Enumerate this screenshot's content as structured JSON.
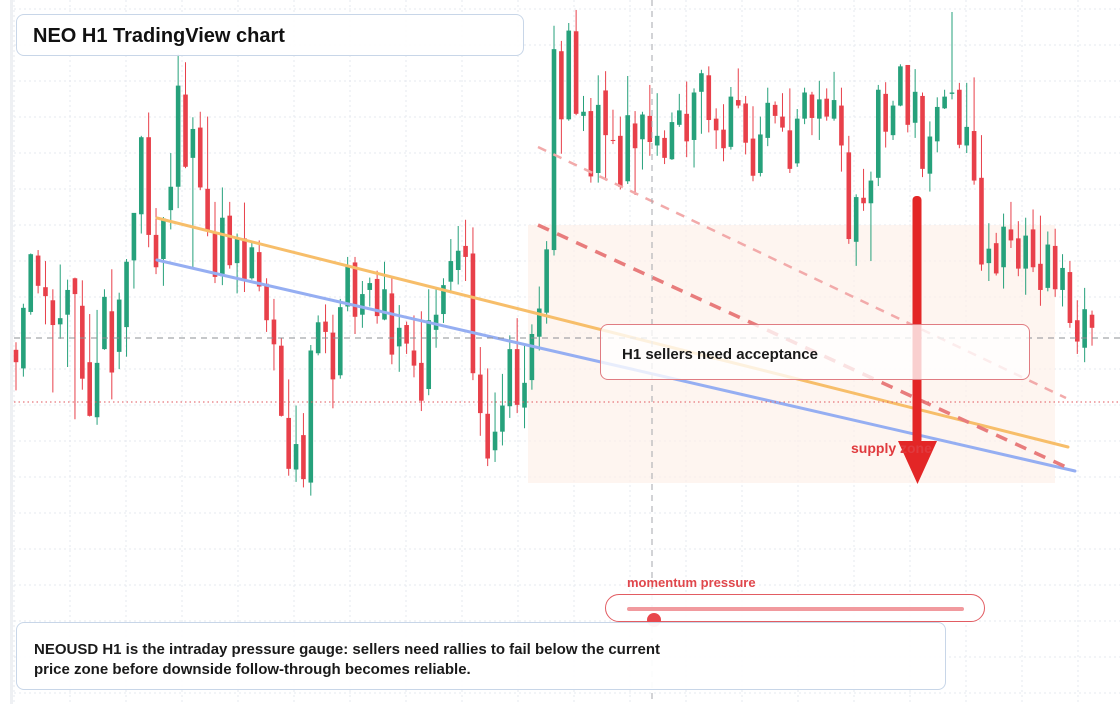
{
  "title": "NEO H1 TradingView chart",
  "callout_text": "H1 sellers need acceptance",
  "zone_label": "supply zone",
  "momentum": {
    "label": "momentum pressure",
    "level": 0.08
  },
  "note_text": "NEOUSD H1 is the intraday pressure gauge: sellers need rallies to fail below the current price zone before downside follow-through becomes reliable.",
  "colors": {
    "up": "#26a17b",
    "down": "#e8404a",
    "trend_orange": "#f7be6a",
    "trend_blue": "#95aef2",
    "channel_dashed": "#e87c7c",
    "arrow": "#e32626",
    "grid": "#e6e9ef",
    "zone_fill": "#fdf0e8"
  },
  "chart_data": {
    "type": "candlestick",
    "symbol": "NEOUSD",
    "timeframe": "H1",
    "ylim": [
      0,
      100
    ],
    "price_scale_visible": false,
    "grid": true,
    "candles": [
      [
        50.9,
        52.0,
        45.0,
        49.1
      ],
      [
        48.2,
        57.6,
        47.0,
        57.0
      ],
      [
        56.4,
        64.9,
        56.0,
        64.8
      ],
      [
        64.6,
        65.4,
        59.1,
        60.2
      ],
      [
        60.0,
        63.8,
        54.6,
        58.7
      ],
      [
        58.1,
        59.7,
        44.7,
        54.5
      ],
      [
        54.6,
        63.3,
        52.5,
        55.5
      ],
      [
        56.0,
        61.1,
        48.4,
        59.6
      ],
      [
        61.3,
        61.4,
        40.8,
        59.0
      ],
      [
        57.3,
        61.0,
        45.1,
        46.7
      ],
      [
        49.1,
        56.1,
        41.2,
        41.3
      ],
      [
        41.1,
        56.7,
        40.0,
        49.0
      ],
      [
        51.0,
        59.7,
        50.9,
        58.6
      ],
      [
        56.5,
        62.6,
        43.7,
        47.6
      ],
      [
        50.6,
        59.2,
        48.1,
        58.2
      ],
      [
        54.2,
        64.1,
        49.9,
        63.7
      ],
      [
        63.9,
        70.7,
        59.8,
        70.8
      ],
      [
        70.6,
        82.0,
        67.8,
        81.8
      ],
      [
        81.8,
        85.4,
        65.8,
        67.6
      ],
      [
        67.6,
        71.5,
        61.9,
        62.9
      ],
      [
        64.1,
        70.2,
        60.2,
        70.0
      ],
      [
        71.2,
        79.5,
        68.4,
        74.6
      ],
      [
        74.6,
        93.9,
        71.5,
        89.3
      ],
      [
        88.0,
        92.7,
        77.3,
        77.5
      ],
      [
        78.8,
        84.7,
        62.6,
        83.0
      ],
      [
        83.2,
        85.5,
        74.1,
        74.5
      ],
      [
        74.3,
        84.8,
        67.4,
        68.3
      ],
      [
        67.8,
        72.4,
        60.6,
        61.5
      ],
      [
        61.6,
        74.5,
        60.3,
        70.1
      ],
      [
        70.4,
        72.4,
        62.7,
        63.2
      ],
      [
        63.5,
        67.8,
        59.1,
        67.0
      ],
      [
        67.1,
        72.3,
        59.3,
        61.2
      ],
      [
        61.3,
        66.7,
        61.1,
        65.8
      ],
      [
        65.1,
        66.8,
        59.4,
        60.1
      ],
      [
        60.5,
        61.3,
        53.5,
        55.2
      ],
      [
        55.3,
        58.3,
        47.9,
        51.7
      ],
      [
        51.5,
        52.6,
        41.2,
        41.3
      ],
      [
        41.0,
        46.6,
        32.6,
        33.6
      ],
      [
        33.5,
        42.8,
        31.7,
        37.2
      ],
      [
        38.5,
        41.7,
        30.9,
        32.1
      ],
      [
        31.6,
        51.6,
        29.7,
        50.8
      ],
      [
        50.4,
        55.9,
        50.1,
        54.9
      ],
      [
        55.0,
        57.5,
        50.4,
        53.5
      ],
      [
        53.4,
        56.0,
        42.4,
        46.6
      ],
      [
        47.2,
        58.3,
        46.7,
        57.1
      ],
      [
        57.2,
        64.4,
        56.5,
        63.1
      ],
      [
        63.6,
        64.4,
        53.2,
        55.7
      ],
      [
        56.0,
        60.9,
        54.1,
        59.0
      ],
      [
        59.6,
        61.4,
        57.2,
        60.6
      ],
      [
        61.2,
        62.4,
        54.7,
        55.8
      ],
      [
        55.3,
        63.7,
        55.2,
        59.7
      ],
      [
        59.1,
        61.3,
        48.8,
        50.2
      ],
      [
        51.4,
        57.4,
        47.7,
        54.1
      ],
      [
        54.5,
        55.0,
        50.3,
        51.8
      ],
      [
        50.8,
        55.9,
        46.9,
        48.6
      ],
      [
        49.0,
        56.5,
        42.0,
        43.5
      ],
      [
        45.2,
        59.7,
        44.3,
        55.2
      ],
      [
        53.8,
        59.9,
        51.2,
        56.0
      ],
      [
        56.1,
        61.3,
        54.8,
        60.3
      ],
      [
        60.8,
        67.0,
        59.1,
        63.8
      ],
      [
        62.5,
        68.9,
        60.4,
        65.3
      ],
      [
        66.0,
        69.8,
        60.9,
        64.4
      ],
      [
        64.9,
        68.7,
        46.5,
        47.5
      ],
      [
        47.3,
        51.3,
        38.4,
        41.7
      ],
      [
        41.6,
        48.2,
        34.0,
        35.1
      ],
      [
        36.3,
        44.7,
        34.6,
        39.0
      ],
      [
        39.0,
        47.4,
        37.0,
        42.8
      ],
      [
        42.7,
        53.0,
        41.0,
        51.0
      ],
      [
        51.0,
        55.5,
        41.7,
        42.9
      ],
      [
        42.5,
        51.6,
        39.5,
        46.1
      ],
      [
        46.5,
        54.6,
        45.1,
        53.2
      ],
      [
        52.8,
        60.1,
        50.8,
        56.9
      ],
      [
        56.3,
        66.7,
        54.7,
        65.5
      ],
      [
        65.4,
        98.0,
        64.6,
        94.6
      ],
      [
        94.3,
        95.8,
        79.4,
        84.4
      ],
      [
        84.4,
        98.4,
        84.2,
        97.3
      ],
      [
        97.2,
        100.3,
        85.0,
        85.2
      ],
      [
        84.9,
        87.8,
        82.7,
        85.5
      ],
      [
        85.6,
        87.5,
        75.2,
        76.1
      ],
      [
        76.6,
        90.8,
        75.2,
        86.5
      ],
      [
        88.6,
        91.4,
        75.5,
        82.1
      ],
      [
        81.4,
        85.8,
        80.8,
        81.3
      ],
      [
        82.0,
        84.8,
        74.2,
        74.6
      ],
      [
        75.4,
        90.7,
        75.0,
        85.0
      ],
      [
        83.8,
        85.6,
        73.4,
        80.2
      ],
      [
        81.5,
        85.5,
        77.1,
        85.1
      ],
      [
        84.9,
        89.4,
        79.1,
        81.1
      ],
      [
        80.6,
        88.2,
        79.1,
        82.0
      ],
      [
        81.7,
        82.8,
        77.9,
        78.8
      ],
      [
        78.6,
        85.4,
        78.5,
        84.0
      ],
      [
        83.6,
        88.1,
        83.3,
        85.7
      ],
      [
        85.2,
        89.9,
        78.9,
        81.2
      ],
      [
        81.4,
        88.9,
        77.4,
        88.3
      ],
      [
        88.4,
        91.6,
        82.3,
        91.1
      ],
      [
        90.8,
        92.1,
        82.5,
        84.3
      ],
      [
        84.5,
        86.0,
        80.1,
        82.8
      ],
      [
        82.9,
        86.6,
        78.3,
        80.2
      ],
      [
        80.4,
        89.1,
        80.0,
        87.7
      ],
      [
        87.2,
        91.8,
        86.0,
        86.4
      ],
      [
        86.7,
        87.8,
        79.3,
        81.0
      ],
      [
        81.6,
        86.3,
        75.4,
        76.2
      ],
      [
        76.6,
        84.8,
        76.1,
        82.2
      ],
      [
        81.7,
        89.0,
        80.5,
        86.8
      ],
      [
        86.5,
        87.0,
        83.8,
        84.9
      ],
      [
        84.8,
        88.2,
        82.6,
        83.2
      ],
      [
        82.8,
        88.9,
        76.6,
        77.2
      ],
      [
        78.0,
        85.9,
        77.5,
        84.5
      ],
      [
        84.5,
        89.0,
        83.7,
        88.3
      ],
      [
        88.0,
        88.4,
        82.1,
        84.6
      ],
      [
        84.5,
        90.0,
        81.4,
        87.3
      ],
      [
        87.4,
        88.9,
        84.2,
        84.8
      ],
      [
        84.5,
        91.3,
        84.2,
        87.2
      ],
      [
        86.4,
        89.0,
        76.8,
        80.6
      ],
      [
        79.6,
        82.0,
        66.3,
        67.0
      ],
      [
        66.6,
        73.5,
        63.1,
        73.1
      ],
      [
        73.0,
        77.2,
        71.1,
        72.2
      ],
      [
        72.2,
        76.8,
        63.8,
        75.5
      ],
      [
        75.9,
        89.4,
        74.7,
        88.7
      ],
      [
        88.1,
        89.8,
        80.3,
        82.6
      ],
      [
        82.1,
        87.1,
        81.4,
        86.4
      ],
      [
        86.4,
        92.4,
        86.3,
        92.1
      ],
      [
        92.3,
        92.2,
        82.5,
        83.6
      ],
      [
        83.9,
        91.7,
        81.7,
        88.4
      ],
      [
        87.8,
        88.3,
        76.0,
        77.2
      ],
      [
        76.5,
        84.1,
        73.9,
        81.9
      ],
      [
        81.2,
        87.6,
        79.6,
        86.2
      ],
      [
        86.0,
        88.7,
        85.9,
        87.7
      ],
      [
        88.1,
        100.0,
        87.3,
        88.3
      ],
      [
        88.7,
        89.7,
        80.2,
        80.7
      ],
      [
        80.6,
        89.7,
        79.5,
        83.3
      ],
      [
        82.7,
        90.5,
        74.9,
        75.5
      ],
      [
        75.9,
        82.1,
        62.4,
        63.3
      ],
      [
        63.5,
        69.3,
        60.9,
        65.6
      ],
      [
        66.4,
        67.9,
        61.7,
        62.0
      ],
      [
        62.9,
        70.7,
        59.8,
        68.8
      ],
      [
        68.4,
        72.4,
        65.7,
        66.8
      ],
      [
        67.1,
        69.6,
        61.6,
        62.7
      ],
      [
        62.7,
        70.1,
        58.9,
        67.5
      ],
      [
        68.4,
        71.3,
        62.2,
        62.9
      ],
      [
        63.4,
        70.4,
        57.3,
        59.6
      ],
      [
        59.9,
        68.1,
        59.4,
        66.2
      ],
      [
        66.0,
        68.5,
        58.6,
        59.7
      ],
      [
        59.6,
        64.8,
        57.2,
        62.8
      ],
      [
        62.2,
        63.8,
        54.1,
        54.8
      ],
      [
        55.2,
        58.1,
        50.3,
        52.1
      ],
      [
        51.2,
        59.9,
        49.1,
        56.8
      ],
      [
        56.0,
        56.6,
        51.5,
        54.1
      ]
    ]
  }
}
